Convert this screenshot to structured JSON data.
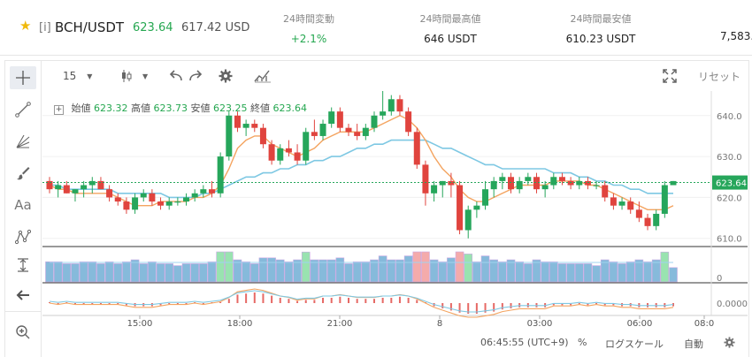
{
  "header": {
    "exchange_tag": "[i]",
    "pair": "BCH/USDT",
    "price": "623.64",
    "usd_price": "617.42 USD",
    "change_label": "24時間変動",
    "change_value": "+2.1%",
    "high_label": "24時間最高値",
    "high_value": "646 USDT",
    "low_label": "24時間最安値",
    "low_value": "610.23 USDT",
    "volume_value": "7,583."
  },
  "toolbar": {
    "interval": "15",
    "reset_label": "リセット"
  },
  "legend": {
    "open_label": "始値",
    "open": "623.32",
    "high_label": "高値",
    "high": "623.73",
    "low_label": "安値",
    "low": "623.25",
    "close_label": "終値",
    "close": "623.64"
  },
  "footer": {
    "time": "06:45:55 (UTC+9)",
    "percent_label": "%",
    "log_label": "ログスケール",
    "auto_label": "自動"
  },
  "chart_data": {
    "type": "candlestick",
    "price_axis": {
      "ticks": [
        610,
        620,
        630,
        640
      ],
      "range": [
        608,
        646
      ],
      "current_label": "623.64"
    },
    "time_axis": {
      "ticks": [
        "15:00",
        "18:00",
        "21:00",
        "8",
        "03:00",
        "06:00",
        "08:0"
      ]
    },
    "volume_axis": {
      "ticks": [
        "0"
      ]
    },
    "oscillator_axis": {
      "ticks": [
        "0.0000"
      ]
    },
    "candles": [
      [
        624,
        625,
        621,
        622
      ],
      [
        622,
        624,
        620,
        623
      ],
      [
        623,
        624,
        621,
        621
      ],
      [
        621,
        622,
        619,
        622
      ],
      [
        622,
        624,
        620,
        623
      ],
      [
        623,
        625,
        621,
        624
      ],
      [
        624,
        625,
        622,
        622
      ],
      [
        622,
        623,
        619,
        620
      ],
      [
        620,
        621,
        618,
        619
      ],
      [
        619,
        620,
        616,
        617
      ],
      [
        617,
        621,
        616,
        620
      ],
      [
        620,
        622,
        619,
        621
      ],
      [
        621,
        622,
        618,
        619
      ],
      [
        619,
        620,
        617,
        618
      ],
      [
        618,
        620,
        617,
        619
      ],
      [
        619,
        620,
        618,
        619
      ],
      [
        619,
        621,
        618,
        620
      ],
      [
        620,
        622,
        619,
        621
      ],
      [
        621,
        623,
        620,
        622
      ],
      [
        622,
        624,
        620,
        621
      ],
      [
        621,
        631,
        620,
        630
      ],
      [
        630,
        641,
        629,
        640
      ],
      [
        640,
        641,
        636,
        637
      ],
      [
        637,
        639,
        635,
        638
      ],
      [
        638,
        639,
        636,
        637
      ],
      [
        637,
        638,
        632,
        633
      ],
      [
        633,
        634,
        628,
        629
      ],
      [
        629,
        633,
        628,
        632
      ],
      [
        632,
        634,
        630,
        631
      ],
      [
        631,
        633,
        628,
        629
      ],
      [
        629,
        637,
        628,
        636
      ],
      [
        636,
        639,
        634,
        635
      ],
      [
        635,
        639,
        634,
        638
      ],
      [
        638,
        642,
        637,
        641
      ],
      [
        641,
        642,
        636,
        637
      ],
      [
        637,
        638,
        635,
        636
      ],
      [
        636,
        638,
        634,
        635
      ],
      [
        635,
        638,
        634,
        637
      ],
      [
        637,
        641,
        636,
        640
      ],
      [
        640,
        646,
        639,
        641
      ],
      [
        641,
        645,
        640,
        644
      ],
      [
        644,
        645,
        640,
        641
      ],
      [
        641,
        642,
        635,
        636
      ],
      [
        636,
        637,
        627,
        628
      ],
      [
        628,
        629,
        618,
        621
      ],
      [
        621,
        624,
        619,
        623
      ],
      [
        623,
        624,
        620,
        624
      ],
      [
        624,
        626,
        620,
        623
      ],
      [
        623,
        624,
        611,
        612
      ],
      [
        612,
        618,
        610,
        617
      ],
      [
        617,
        619,
        615,
        618
      ],
      [
        618,
        624,
        617,
        622
      ],
      [
        622,
        625,
        620,
        624
      ],
      [
        624,
        626,
        622,
        625
      ],
      [
        625,
        626,
        621,
        622
      ],
      [
        622,
        625,
        621,
        624
      ],
      [
        624,
        626,
        623,
        625
      ],
      [
        625,
        626,
        621,
        622
      ],
      [
        622,
        624,
        620,
        623
      ],
      [
        623,
        626,
        622,
        625
      ],
      [
        625,
        626,
        623,
        624
      ],
      [
        624,
        625,
        622,
        623
      ],
      [
        623,
        625,
        622,
        624
      ],
      [
        624,
        625,
        622,
        623
      ],
      [
        623,
        624,
        622,
        623
      ],
      [
        623,
        624,
        619,
        620
      ],
      [
        620,
        621,
        617,
        618
      ],
      [
        618,
        620,
        617,
        619
      ],
      [
        619,
        620,
        616,
        617
      ],
      [
        617,
        619,
        614,
        615
      ],
      [
        615,
        616,
        612,
        613
      ],
      [
        613,
        617,
        612,
        616
      ],
      [
        616,
        624,
        615,
        623
      ],
      [
        623,
        624,
        623,
        624
      ]
    ],
    "ma_fast": [
      623,
      622,
      622,
      621,
      621,
      621,
      621,
      621,
      620,
      619,
      618,
      618,
      618,
      619,
      619,
      619,
      619,
      620,
      620,
      621,
      623,
      627,
      632,
      634,
      635,
      635,
      633,
      632,
      631,
      630,
      631,
      632,
      634,
      635,
      636,
      636,
      636,
      636,
      637,
      638,
      639,
      640,
      639,
      637,
      634,
      630,
      627,
      625,
      622,
      620,
      619,
      619,
      620,
      621,
      622,
      623,
      623,
      623,
      623,
      624,
      624,
      624,
      624,
      623,
      623,
      622,
      621,
      620,
      619,
      618,
      617,
      617,
      617,
      618
    ],
    "ma_slow": [
      623,
      623,
      622,
      622,
      622,
      622,
      622,
      622,
      621,
      621,
      621,
      621,
      621,
      621,
      620,
      620,
      620,
      620,
      621,
      621,
      622,
      623,
      624,
      625,
      625,
      626,
      626,
      627,
      627,
      628,
      628,
      629,
      629,
      630,
      630,
      631,
      632,
      632,
      633,
      633,
      634,
      634,
      634,
      634,
      634,
      633,
      632,
      632,
      631,
      630,
      629,
      628,
      628,
      627,
      627,
      627,
      627,
      627,
      627,
      626,
      626,
      626,
      625,
      625,
      624,
      624,
      623,
      623,
      622,
      622,
      621,
      621,
      621,
      621
    ]
  }
}
